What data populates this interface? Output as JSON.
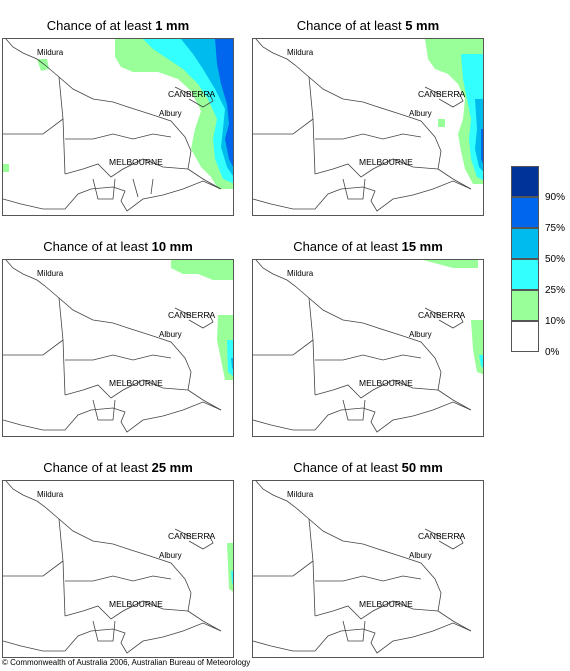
{
  "panels": [
    {
      "title_prefix": "Chance of at least",
      "threshold": "1 mm"
    },
    {
      "title_prefix": "Chance of at least",
      "threshold": "5 mm"
    },
    {
      "title_prefix": "Chance of at least",
      "threshold": "10 mm"
    },
    {
      "title_prefix": "Chance of at least",
      "threshold": "15 mm"
    },
    {
      "title_prefix": "Chance of at least",
      "threshold": "25 mm"
    },
    {
      "title_prefix": "Chance of at least",
      "threshold": "50 mm"
    }
  ],
  "places": {
    "mildura": "Mildura",
    "canberra": "CANBERRA",
    "albury": "Albury",
    "melbourne": "MELBOURNE"
  },
  "legend": {
    "colors": [
      "#003399",
      "#0066ee",
      "#00bbee",
      "#33ffff",
      "#99ff99",
      "#ffffff"
    ],
    "labels": [
      "90%",
      "75%",
      "50%",
      "25%",
      "10%",
      "0%"
    ]
  },
  "copyright": "© Commonwealth of Australia 2006, Australian Bureau of Meteorology"
}
